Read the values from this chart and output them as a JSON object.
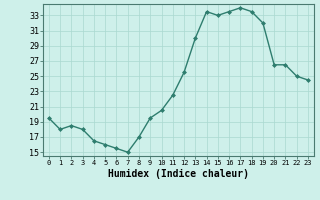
{
  "x": [
    0,
    1,
    2,
    3,
    4,
    5,
    6,
    7,
    8,
    9,
    10,
    11,
    12,
    13,
    14,
    15,
    16,
    17,
    18,
    19,
    20,
    21,
    22,
    23
  ],
  "y": [
    19.5,
    18.0,
    18.5,
    18.0,
    16.5,
    16.0,
    15.5,
    15.0,
    17.0,
    19.5,
    20.5,
    22.5,
    25.5,
    30.0,
    33.5,
    33.0,
    33.5,
    34.0,
    33.5,
    32.0,
    26.5,
    26.5,
    25.0,
    24.5
  ],
  "xlabel": "Humidex (Indice chaleur)",
  "xlim": [
    -0.5,
    23.5
  ],
  "ylim": [
    14.5,
    34.5
  ],
  "yticks": [
    15,
    17,
    19,
    21,
    23,
    25,
    27,
    29,
    31,
    33
  ],
  "xticks": [
    0,
    1,
    2,
    3,
    4,
    5,
    6,
    7,
    8,
    9,
    10,
    11,
    12,
    13,
    14,
    15,
    16,
    17,
    18,
    19,
    20,
    21,
    22,
    23
  ],
  "xtick_labels": [
    "0",
    "1",
    "2",
    "3",
    "4",
    "5",
    "6",
    "7",
    "8",
    "9",
    "10",
    "11",
    "12",
    "13",
    "14",
    "15",
    "16",
    "17",
    "18",
    "19",
    "20",
    "21",
    "22",
    "23"
  ],
  "line_color": "#2e7d6e",
  "marker_color": "#2e7d6e",
  "bg_color": "#cef0ea",
  "grid_color": "#aad8d0",
  "spine_color": "#4a7a70"
}
